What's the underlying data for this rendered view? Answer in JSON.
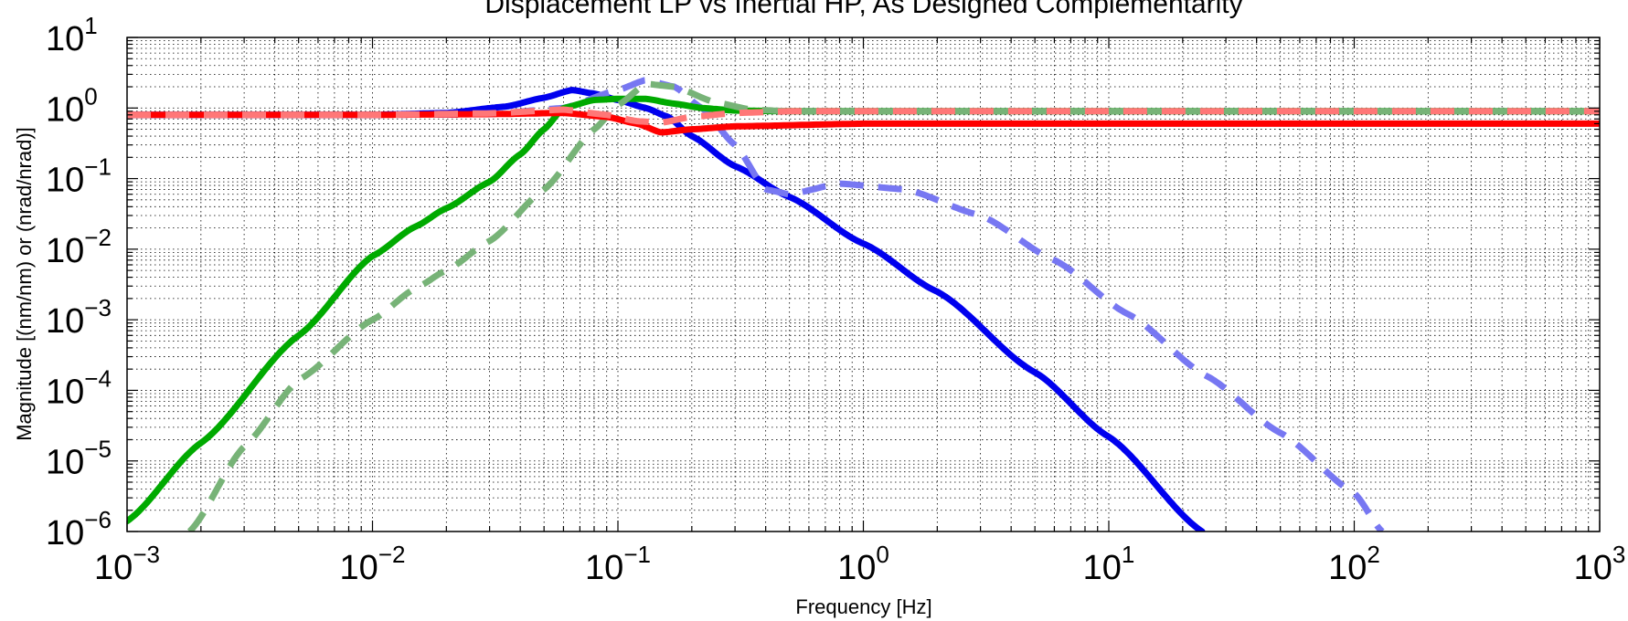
{
  "chart_data": {
    "type": "line",
    "title": "Displacement LP vs Inertial HP, As Designed Complementarity",
    "xlabel": "Frequency [Hz]",
    "ylabel": "Magnitude [(nm/nm) or (nrad/nrad)]",
    "x_scale": "log",
    "y_scale": "log",
    "xlim": [
      0.001,
      1000
    ],
    "ylim": [
      1e-06,
      10
    ],
    "grid": true,
    "legend": "none",
    "x_ticks": [
      {
        "base": "10",
        "exp": "−3"
      },
      {
        "base": "10",
        "exp": "−2"
      },
      {
        "base": "10",
        "exp": "−1"
      },
      {
        "base": "10",
        "exp": "0"
      },
      {
        "base": "10",
        "exp": "1"
      },
      {
        "base": "10",
        "exp": "2"
      },
      {
        "base": "10",
        "exp": "3"
      }
    ],
    "y_ticks": [
      {
        "base": "10",
        "exp": "−6"
      },
      {
        "base": "10",
        "exp": "−5"
      },
      {
        "base": "10",
        "exp": "−4"
      },
      {
        "base": "10",
        "exp": "−3"
      },
      {
        "base": "10",
        "exp": "−2"
      },
      {
        "base": "10",
        "exp": "−1"
      },
      {
        "base": "10",
        "exp": "0"
      },
      {
        "base": "10",
        "exp": "1"
      }
    ],
    "series": [
      {
        "color": "#0000ee",
        "style": "solid",
        "x": [
          0.001,
          0.01,
          0.02,
          0.035,
          0.05,
          0.065,
          0.08,
          0.1,
          0.13,
          0.16,
          0.2,
          0.3,
          0.5,
          1,
          2,
          5,
          10,
          24
        ],
        "y": [
          0.8,
          0.8,
          0.85,
          1.05,
          1.4,
          1.8,
          1.6,
          1.3,
          1.0,
          0.75,
          0.4,
          0.15,
          0.055,
          0.012,
          0.0025,
          0.00018,
          2.2e-05,
          1e-06
        ]
      },
      {
        "color": "#7777f2",
        "style": "dashed",
        "x": [
          0.001,
          0.01,
          0.03,
          0.06,
          0.1,
          0.13,
          0.17,
          0.22,
          0.3,
          0.4,
          0.5,
          0.8,
          1.5,
          3,
          6,
          12,
          25,
          50,
          100,
          130
        ],
        "y": [
          0.8,
          0.8,
          0.82,
          1.0,
          1.8,
          2.5,
          2.0,
          1.0,
          0.3,
          0.07,
          0.06,
          0.085,
          0.07,
          0.03,
          0.007,
          0.0012,
          0.00016,
          2.5e-05,
          3.5e-06,
          1e-06
        ]
      },
      {
        "color": "#00aa00",
        "style": "solid",
        "x": [
          0.001,
          0.002,
          0.005,
          0.01,
          0.015,
          0.02,
          0.03,
          0.04,
          0.05,
          0.06,
          0.08,
          0.1,
          0.13,
          0.17,
          0.22,
          0.3,
          0.5,
          1000
        ],
        "y": [
          1.4e-06,
          1.8e-05,
          0.0006,
          0.008,
          0.021,
          0.038,
          0.09,
          0.22,
          0.5,
          1.0,
          1.3,
          1.35,
          1.35,
          1.15,
          1.0,
          0.92,
          0.9,
          0.9
        ]
      },
      {
        "color": "#77b377",
        "style": "dashed",
        "x": [
          0.0018,
          0.003,
          0.005,
          0.01,
          0.015,
          0.02,
          0.03,
          0.05,
          0.08,
          0.1,
          0.13,
          0.17,
          0.25,
          0.35,
          0.5,
          1000
        ],
        "y": [
          1e-06,
          1.6e-05,
          0.00014,
          0.001,
          0.0028,
          0.005,
          0.013,
          0.07,
          0.5,
          1.1,
          2.2,
          2.0,
          1.2,
          0.95,
          0.9,
          0.9
        ]
      },
      {
        "color": "#ff0000",
        "style": "solid",
        "x": [
          0.001,
          0.01,
          0.03,
          0.06,
          0.09,
          0.12,
          0.15,
          0.2,
          0.3,
          1,
          1000
        ],
        "y": [
          0.8,
          0.8,
          0.82,
          0.85,
          0.75,
          0.6,
          0.45,
          0.5,
          0.55,
          0.6,
          0.6
        ]
      },
      {
        "color": "#ff7777",
        "style": "dashed",
        "x": [
          0.001,
          0.01,
          0.03,
          0.06,
          0.09,
          0.12,
          0.15,
          0.2,
          0.3,
          0.5,
          1000
        ],
        "y": [
          0.8,
          0.8,
          0.84,
          0.95,
          0.8,
          0.65,
          0.62,
          0.75,
          0.85,
          0.9,
          0.9
        ]
      }
    ]
  }
}
